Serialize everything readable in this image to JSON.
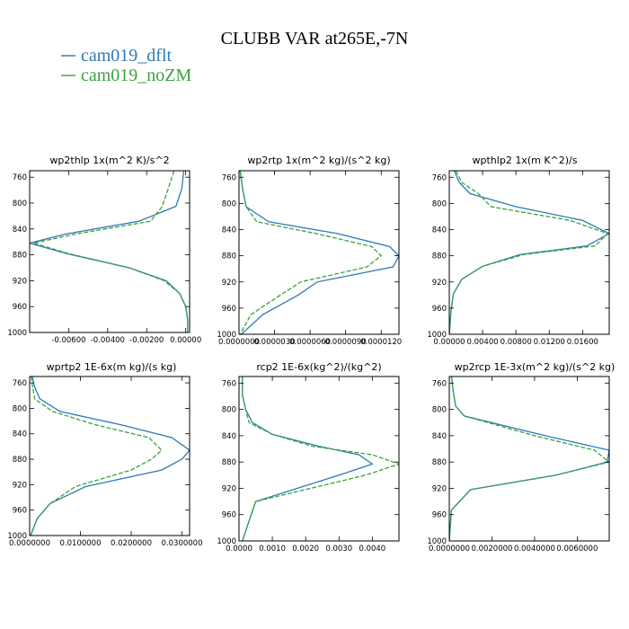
{
  "figure": {
    "title": "CLUBB VAR at265E,-7N"
  },
  "legend": [
    {
      "label": "cam019_dflt",
      "color": "#2e7ab4",
      "dash": "solid"
    },
    {
      "label": "cam019_noZM",
      "color": "#3aa33a",
      "dash": "dashed"
    }
  ],
  "chart_data": [
    {
      "type": "line",
      "title": "wp2thlp  1x(m^2 K)/s^2",
      "ylim": [
        1000,
        750
      ],
      "yticks": [
        760,
        800,
        840,
        880,
        920,
        960,
        1000
      ],
      "xlim": [
        -0.008,
        0.0002
      ],
      "xticks": [
        -0.006,
        -0.004,
        -0.002,
        0.0
      ],
      "xticklabels": [
        "-0.00600",
        "-0.00400",
        "-0.00200",
        "0.00000"
      ],
      "series": [
        {
          "name": "cam019_dflt",
          "x": [
            -0.0001,
            -0.0002,
            -0.0005,
            -0.0024,
            -0.0062,
            -0.008,
            -0.0061,
            -0.0029,
            -0.001,
            -0.0003,
            0.0,
            0.0001,
            0.0001
          ],
          "y": [
            750,
            778,
            805,
            828,
            848,
            862,
            878,
            900,
            920,
            940,
            960,
            980,
            1000
          ]
        },
        {
          "name": "cam019_noZM",
          "x": [
            -0.0006,
            -0.0009,
            -0.0012,
            -0.0018,
            -0.0057,
            -0.0078,
            -0.006,
            -0.0029,
            -0.0011,
            -0.0003,
            0.0,
            0.0001,
            0.0001
          ],
          "y": [
            750,
            778,
            805,
            828,
            848,
            862,
            878,
            900,
            920,
            940,
            960,
            980,
            1000
          ]
        }
      ]
    },
    {
      "type": "line",
      "title": "wp2rtp  1x(m^2 kg)/(s^2 kg)",
      "ylim": [
        1000,
        750
      ],
      "yticks": [
        760,
        800,
        840,
        880,
        920,
        960,
        1000
      ],
      "xlim": [
        0.0,
        1.35e-05
      ],
      "xticks": [
        0.0,
        3e-06,
        6e-06,
        9e-06,
        1.2e-05
      ],
      "xticklabels": [
        "0.0000000",
        "0.0000030",
        "0.0000060",
        "0.0000090",
        "0.0000120"
      ],
      "series": [
        {
          "name": "cam019_dflt",
          "x": [
            1e-07,
            3e-07,
            6e-07,
            2.5e-06,
            8.3e-06,
            1.27e-05,
            1.35e-05,
            1.3e-05,
            6.6e-06,
            5e-06,
            2e-06,
            2e-07
          ],
          "y": [
            750,
            778,
            805,
            828,
            846,
            866,
            880,
            897,
            920,
            940,
            970,
            1000
          ]
        },
        {
          "name": "cam019_noZM",
          "x": [
            1e-07,
            3e-07,
            6e-07,
            1.5e-06,
            6.5e-06,
            1.12e-05,
            1.2e-05,
            1.08e-05,
            5.2e-06,
            3.5e-06,
            1e-06,
            1e-07
          ],
          "y": [
            750,
            778,
            805,
            828,
            846,
            866,
            880,
            897,
            920,
            940,
            970,
            1000
          ]
        }
      ]
    },
    {
      "type": "line",
      "title": "wpthlp2  1x(m K^2)/s",
      "ylim": [
        1000,
        750
      ],
      "yticks": [
        760,
        800,
        840,
        880,
        920,
        960,
        1000
      ],
      "xlim": [
        0.0,
        0.0192
      ],
      "xticks": [
        0.0,
        0.004,
        0.008,
        0.012,
        0.016
      ],
      "xticklabels": [
        "0.00000",
        "0.00400",
        "0.00800",
        "0.01200",
        "0.01600"
      ],
      "series": [
        {
          "name": "cam019_dflt",
          "x": [
            0.0006,
            0.0012,
            0.0025,
            0.008,
            0.016,
            0.0192,
            0.0165,
            0.0085,
            0.004,
            0.0015,
            0.0005,
            0.0002,
            0.0
          ],
          "y": [
            750,
            768,
            785,
            805,
            826,
            846,
            865,
            878,
            896,
            916,
            938,
            965,
            1000
          ]
        },
        {
          "name": "cam019_noZM",
          "x": [
            0.0008,
            0.0015,
            0.0035,
            0.005,
            0.0145,
            0.019,
            0.0175,
            0.009,
            0.004,
            0.0015,
            0.0005,
            0.0002,
            0.0
          ],
          "y": [
            750,
            768,
            785,
            805,
            826,
            846,
            865,
            878,
            896,
            916,
            938,
            965,
            1000
          ]
        }
      ]
    },
    {
      "type": "line",
      "title": "wprtp2  1E-6x(m kg)/(s kg)",
      "ylim": [
        1000,
        750
      ],
      "yticks": [
        760,
        800,
        840,
        880,
        920,
        960,
        1000
      ],
      "xlim": [
        0.0,
        0.0315
      ],
      "xticks": [
        0.0,
        0.01,
        0.02,
        0.03
      ],
      "xticklabels": [
        "0.0000000",
        "0.0100000",
        "0.0200000",
        "0.0300000"
      ],
      "series": [
        {
          "name": "cam019_dflt",
          "x": [
            0.0005,
            0.001,
            0.002,
            0.006,
            0.018,
            0.028,
            0.0315,
            0.03,
            0.026,
            0.011,
            0.004,
            0.0015,
            0.0002
          ],
          "y": [
            750,
            767,
            785,
            805,
            826,
            846,
            866,
            880,
            897,
            923,
            950,
            973,
            1000
          ]
        },
        {
          "name": "cam019_noZM",
          "x": [
            0.0003,
            0.0006,
            0.001,
            0.0045,
            0.013,
            0.0235,
            0.026,
            0.024,
            0.02,
            0.009,
            0.004,
            0.0015,
            0.0002
          ],
          "y": [
            750,
            767,
            785,
            805,
            826,
            846,
            866,
            880,
            897,
            923,
            950,
            973,
            1000
          ]
        }
      ]
    },
    {
      "type": "line",
      "title": "rcp2  1E-6x(kg^2)/(kg^2)",
      "ylim": [
        1000,
        750
      ],
      "yticks": [
        760,
        800,
        840,
        880,
        920,
        960,
        1000
      ],
      "xlim": [
        0.0,
        0.0048
      ],
      "xticks": [
        0.0,
        0.001,
        0.002,
        0.003,
        0.004
      ],
      "xticklabels": [
        "0.0000",
        "0.0010",
        "0.0020",
        "0.0030",
        "0.0040"
      ],
      "series": [
        {
          "name": "cam019_dflt",
          "x": [
            0.0001,
            0.0001,
            0.0002,
            0.0004,
            0.001,
            0.0024,
            0.0036,
            0.004,
            0.003,
            0.0005,
            0.0001
          ],
          "y": [
            750,
            778,
            800,
            820,
            838,
            856,
            869,
            883,
            900,
            940,
            1000
          ]
        },
        {
          "name": "cam019_noZM",
          "x": [
            0.0001,
            0.0001,
            0.0002,
            0.0003,
            0.001,
            0.0022,
            0.004,
            0.0048,
            0.0038,
            0.0005,
            0.0001
          ],
          "y": [
            750,
            778,
            800,
            820,
            838,
            856,
            869,
            883,
            900,
            940,
            1000
          ]
        }
      ]
    },
    {
      "type": "line",
      "title": "wp2rcp  1E-3x(m^2 kg)/(s^2 kg)",
      "ylim": [
        1000,
        750
      ],
      "yticks": [
        760,
        800,
        840,
        880,
        920,
        960,
        1000
      ],
      "xlim": [
        0.0,
        0.0075
      ],
      "xticks": [
        0.0,
        0.002,
        0.004,
        0.006
      ],
      "xticklabels": [
        "0.0000000",
        "0.0020000",
        "0.0040000",
        "0.0060000"
      ],
      "series": [
        {
          "name": "cam019_dflt",
          "x": [
            0.0001,
            0.0002,
            0.0003,
            0.0007,
            0.0045,
            0.0075,
            0.0074,
            0.005,
            0.001,
            0.0001,
            0.0
          ],
          "y": [
            750,
            775,
            795,
            810,
            840,
            862,
            880,
            900,
            922,
            953,
            1000
          ]
        },
        {
          "name": "cam019_noZM",
          "x": [
            0.0001,
            0.0002,
            0.0003,
            0.0007,
            0.004,
            0.0068,
            0.0075,
            0.005,
            0.001,
            0.0001,
            0.0
          ],
          "y": [
            750,
            775,
            795,
            810,
            840,
            862,
            880,
            900,
            922,
            953,
            1000
          ]
        }
      ]
    }
  ]
}
